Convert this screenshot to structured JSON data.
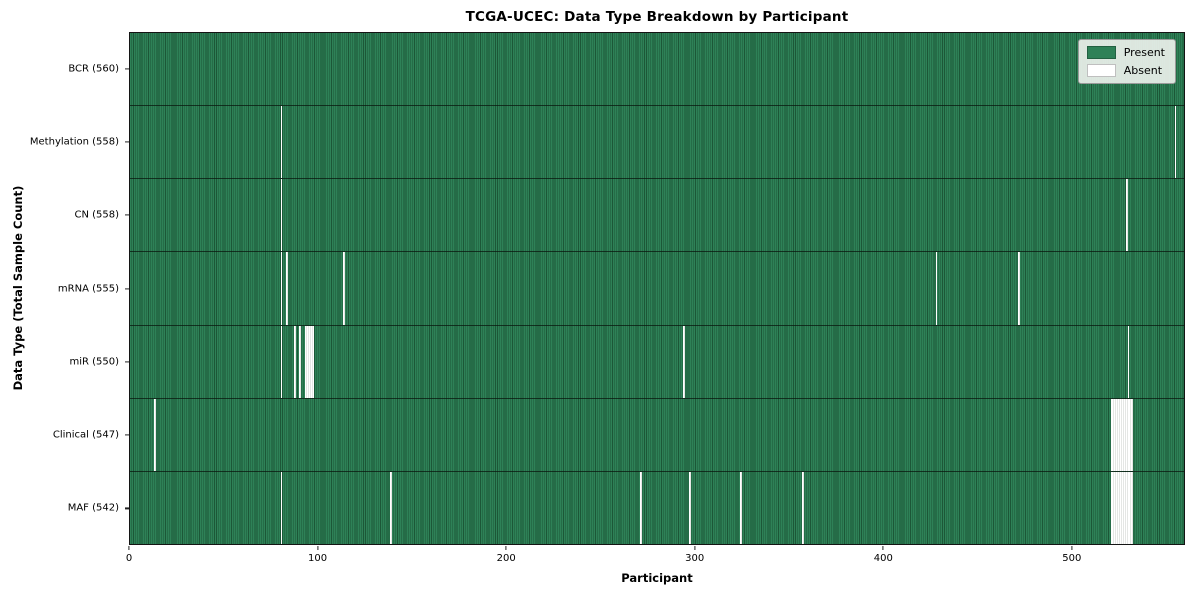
{
  "colors": {
    "present": "#2e8157",
    "present_stripe": "#1c5737",
    "absent": "#ffffff",
    "absent_stripe": "#c9cdc9",
    "row_separator": "#14281a",
    "plot_border": "#141414",
    "legend_bg": "#ecf1ec",
    "legend_border": "#9a9a9a"
  },
  "chart_data": {
    "type": "heatmap",
    "title": "TCGA-UCEC: Data Type Breakdown by Participant",
    "xlabel": "Participant",
    "ylabel": "Data Type (Total Sample Count)",
    "x_range": [
      0,
      560
    ],
    "x_ticks": [
      0,
      100,
      200,
      300,
      400,
      500
    ],
    "grid": false,
    "legend": [
      "Present",
      "Absent"
    ],
    "legend_position": "upper right",
    "cell_states": {
      "present": 1,
      "absent": 0
    },
    "rows": [
      {
        "label": "BCR (560)",
        "data_type": "BCR",
        "present_count": 560,
        "absent_participants": []
      },
      {
        "label": "Methylation (558)",
        "data_type": "Methylation",
        "present_count": 558,
        "absent_participants": [
          80,
          555
        ]
      },
      {
        "label": "CN (558)",
        "data_type": "CN",
        "present_count": 558,
        "absent_participants": [
          80,
          529
        ]
      },
      {
        "label": "mRNA (555)",
        "data_type": "mRNA",
        "present_count": 555,
        "absent_participants": [
          80,
          83,
          113,
          428,
          472
        ]
      },
      {
        "label": "miR (550)",
        "data_type": "miR",
        "present_count": 550,
        "absent_participants": [
          80,
          87,
          90,
          93,
          94,
          95,
          96,
          97,
          294,
          530
        ]
      },
      {
        "label": "Clinical (547)",
        "data_type": "Clinical",
        "present_count": 547,
        "absent_participants": [
          13,
          521,
          522,
          523,
          524,
          525,
          526,
          527,
          528,
          529,
          530,
          531,
          532
        ]
      },
      {
        "label": "MAF (542)",
        "data_type": "MAF",
        "present_count": 542,
        "absent_participants": [
          80,
          138,
          271,
          297,
          324,
          357,
          521,
          522,
          523,
          524,
          525,
          526,
          527,
          528,
          529,
          530,
          531,
          532
        ]
      }
    ]
  }
}
